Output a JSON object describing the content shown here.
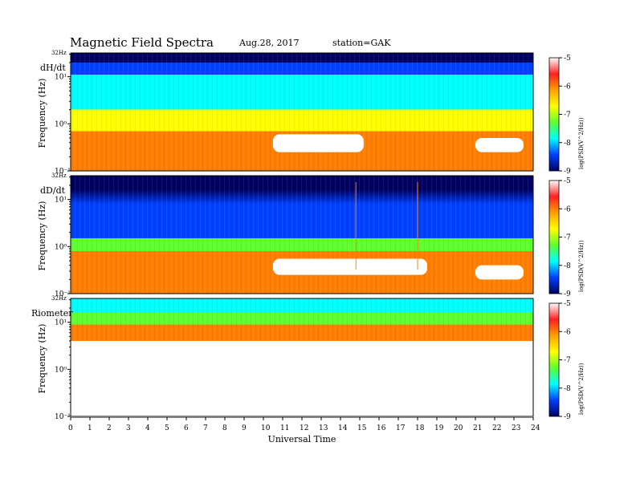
{
  "header": {
    "title": "Magnetic  Field  Spectra",
    "date": "Aug.28, 2017",
    "station": "station=GAK"
  },
  "x_axis": {
    "title": "Universal Time",
    "ticks": [
      "0",
      "1",
      "2",
      "3",
      "4",
      "5",
      "6",
      "7",
      "8",
      "9",
      "10",
      "11",
      "12",
      "13",
      "14",
      "15",
      "16",
      "17",
      "18",
      "19",
      "20",
      "21",
      "22",
      "23",
      "24"
    ]
  },
  "panels": [
    {
      "label": "dH/dt",
      "top_label": "32Hz",
      "ylabel": "Frequency  (Hz)",
      "yticks": [
        "10¹",
        "10⁰",
        "10⁻¹"
      ]
    },
    {
      "label": "dD/dt",
      "top_label": "32Hz",
      "ylabel": "Frequency  (Hz)",
      "yticks": [
        "10¹",
        "10⁰",
        "10⁻¹"
      ]
    },
    {
      "label": "Riometer",
      "top_label": "32Hz",
      "ylabel": "Frequency  (Hz)",
      "yticks": [
        "10¹",
        "10⁰",
        "10⁻¹"
      ]
    }
  ],
  "colorbar": {
    "title": "log(PSD(V^2/Hz))",
    "ticks": [
      "-5",
      "-6",
      "-7",
      "-8",
      "-9"
    ],
    "colors": [
      "#ffffff",
      "#ff2020",
      "#ffa000",
      "#ffff00",
      "#60ff30",
      "#00ffff",
      "#0040ff",
      "#000060"
    ]
  },
  "chart_data": [
    {
      "type": "heatmap",
      "title": "Magnetic  Field  Spectra",
      "series_label": "dH/dt",
      "xlabel": "Universal Time",
      "ylabel": "Frequency  (Hz)",
      "xlim": [
        0,
        24
      ],
      "ylim_hz": [
        0.1,
        32
      ],
      "yscale": "log",
      "zlabel": "log(PSD(V^2/Hz))",
      "zlim": [
        -9,
        -5
      ],
      "bands": [
        {
          "f_low": 20,
          "f_high": 32,
          "level": -9
        },
        {
          "f_low": 11,
          "f_high": 20,
          "level": -8
        },
        {
          "f_low": 2,
          "f_high": 11,
          "level": -7.2
        },
        {
          "f_low": 0.7,
          "f_high": 2,
          "level": -6.5
        },
        {
          "f_low": 0.1,
          "f_high": 0.7,
          "level": -5.5
        }
      ],
      "saturated_regions": [
        {
          "t_start": 10.5,
          "t_end": 15.2,
          "f_low": 0.25,
          "f_high": 0.6
        },
        {
          "t_start": 21.0,
          "t_end": 23.5,
          "f_low": 0.25,
          "f_high": 0.5
        }
      ]
    },
    {
      "type": "heatmap",
      "series_label": "dD/dt",
      "xlabel": "Universal Time",
      "ylabel": "Frequency  (Hz)",
      "xlim": [
        0,
        24
      ],
      "ylim_hz": [
        0.1,
        32
      ],
      "yscale": "log",
      "zlabel": "log(PSD(V^2/Hz))",
      "zlim": [
        -9,
        -5
      ],
      "bands": [
        {
          "f_low": 16,
          "f_high": 32,
          "level": -9
        },
        {
          "f_low": 1.5,
          "f_high": 8,
          "level": -7.8
        },
        {
          "f_low": 0.8,
          "f_high": 1.5,
          "level": -7
        },
        {
          "f_low": 0.1,
          "f_high": 0.8,
          "level": -5.5
        }
      ],
      "saturated_regions": [
        {
          "t_start": 10.5,
          "t_end": 18.5,
          "f_low": 0.25,
          "f_high": 0.55
        },
        {
          "t_start": 21.0,
          "t_end": 23.5,
          "f_low": 0.2,
          "f_high": 0.4
        }
      ],
      "spikes_ut": [
        14.8,
        18.0
      ]
    },
    {
      "type": "heatmap",
      "series_label": "Riometer",
      "xlabel": "Universal Time",
      "ylabel": "Frequency  (Hz)",
      "xlim": [
        0,
        24
      ],
      "ylim_hz": [
        0.1,
        32
      ],
      "yscale": "log",
      "zlabel": "log(PSD(V^2/Hz))",
      "zlim": [
        -9,
        -5
      ],
      "bands": [
        {
          "f_low": 16,
          "f_high": 32,
          "level": -7.3
        },
        {
          "f_low": 9,
          "f_high": 16,
          "level": -6.7
        },
        {
          "f_low": 4,
          "f_high": 9,
          "level": -5.8
        },
        {
          "f_low": 0.1,
          "f_high": 4,
          "level": -5
        }
      ]
    }
  ]
}
